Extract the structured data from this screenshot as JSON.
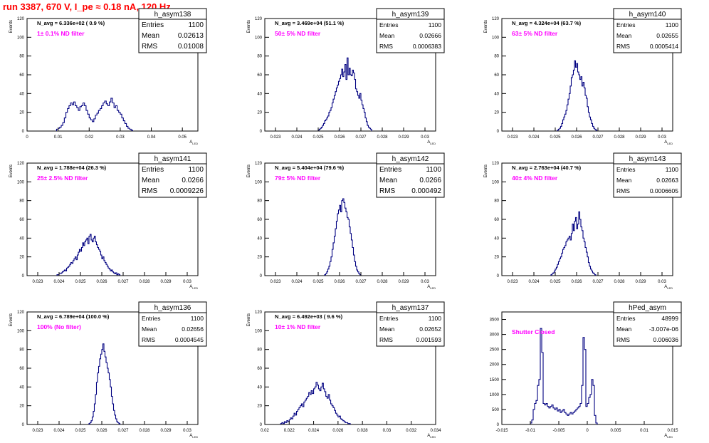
{
  "page": {
    "title": "run 3387,   670 V, I_pe ≈ 0.18 nA, 120 Hz",
    "colors": {
      "title": "#ff0000",
      "filter_label": "#ff00ff",
      "histogram": "#000080",
      "axes": "#000000"
    }
  },
  "chart_data": [
    {
      "type": "bar",
      "name": "h_asym138",
      "navg": "N_avg = 6.336e+02 ( 0.9 %)",
      "filter": "1± 0.1% ND filter",
      "stats": {
        "entries_label": "Entries",
        "entries": "1100",
        "mean_label": "Mean",
        "mean": "0.02613",
        "rms_label": "RMS",
        "rms": "0.01008"
      },
      "xlabel": "A_LED",
      "ylabel": "Events",
      "xlim": [
        0.0,
        0.055
      ],
      "ylim": [
        0,
        120
      ],
      "xticks": [
        0,
        0.01,
        0.02,
        0.03,
        0.04,
        0.05
      ],
      "xticklabels": [
        "0",
        "0.01",
        "0.02",
        "0.03",
        "0.04",
        "0.05"
      ],
      "yticks": [
        0,
        20,
        40,
        60,
        80,
        100,
        120
      ],
      "yticklabels": [
        "0",
        "20",
        "40",
        "60",
        "80",
        "100",
        "120"
      ],
      "bin_start": 0.0095,
      "bin_width": 0.0005,
      "values": [
        2,
        3,
        4,
        6,
        9,
        14,
        20,
        24,
        27,
        30,
        28,
        31,
        27,
        25,
        22,
        26,
        27,
        30,
        27,
        22,
        18,
        14,
        12,
        10,
        13,
        17,
        19,
        22,
        24,
        27,
        30,
        32,
        29,
        27,
        31,
        35,
        30,
        25,
        27,
        22,
        20,
        18,
        14,
        11,
        8,
        5,
        3,
        2,
        1
      ]
    },
    {
      "type": "bar",
      "name": "h_asym139",
      "navg": "N_avg = 3.469e+04 (51.1 %)",
      "filter": "50± 5% ND filter",
      "stats": {
        "entries_label": "Entries",
        "entries": "1100",
        "mean_label": "Mean",
        "mean": "0.02666",
        "rms_label": "RMS",
        "rms": "0.0006383"
      },
      "xlabel": "A_LED",
      "ylabel": "Events",
      "xlim": [
        0.0225,
        0.0305
      ],
      "ylim": [
        0,
        120
      ],
      "xticks": [
        0.023,
        0.024,
        0.025,
        0.026,
        0.027,
        0.028,
        0.029,
        0.03
      ],
      "xticklabels": [
        "0.023",
        "0.024",
        "0.025",
        "0.026",
        "0.027",
        "0.028",
        "0.029",
        "0.03"
      ],
      "yticks": [
        0,
        20,
        40,
        60,
        80,
        100,
        120
      ],
      "yticklabels": [
        "0",
        "20",
        "40",
        "60",
        "80",
        "100",
        "120"
      ],
      "bin_start": 0.025,
      "bin_width": 5e-05,
      "values": [
        1,
        2,
        3,
        4,
        6,
        8,
        11,
        12,
        14,
        16,
        20,
        22,
        25,
        30,
        34,
        38,
        42,
        46,
        49,
        53,
        56,
        60,
        66,
        58,
        63,
        71,
        55,
        78,
        60,
        67,
        60,
        59,
        65,
        62,
        55,
        45,
        42,
        38,
        35,
        40,
        33,
        28,
        24,
        20,
        14,
        10,
        6,
        4,
        3,
        2
      ]
    },
    {
      "type": "bar",
      "name": "h_asym140",
      "navg": "N_avg = 4.324e+04 (63.7 %)",
      "filter": "63± 5% ND filter",
      "stats": {
        "entries_label": "Entries",
        "entries": "1100",
        "mean_label": "Mean",
        "mean": "0.02655",
        "rms_label": "RMS",
        "rms": "0.0005414"
      },
      "xlabel": "A_LED",
      "ylabel": "Events",
      "xlim": [
        0.0225,
        0.0305
      ],
      "ylim": [
        0,
        120
      ],
      "xticks": [
        0.023,
        0.024,
        0.025,
        0.026,
        0.027,
        0.028,
        0.029,
        0.03
      ],
      "xticklabels": [
        "0.023",
        "0.024",
        "0.025",
        "0.026",
        "0.027",
        "0.028",
        "0.029",
        "0.03"
      ],
      "yticks": [
        0,
        20,
        40,
        60,
        80,
        100,
        120
      ],
      "yticklabels": [
        "0",
        "20",
        "40",
        "60",
        "80",
        "100",
        "120"
      ],
      "bin_start": 0.0251,
      "bin_width": 5e-05,
      "values": [
        1,
        2,
        3,
        5,
        8,
        12,
        15,
        18,
        22,
        28,
        34,
        40,
        48,
        57,
        60,
        65,
        75,
        68,
        72,
        63,
        60,
        55,
        58,
        48,
        52,
        46,
        38,
        35,
        26,
        20,
        15,
        12,
        8,
        5,
        3,
        2,
        1
      ]
    },
    {
      "type": "bar",
      "name": "h_asym141",
      "navg": "N_avg = 1.788e+04 (26.3 %)",
      "filter": "25± 2.5% ND filter",
      "stats": {
        "entries_label": "Entries",
        "entries": "1100",
        "mean_label": "Mean",
        "mean": "0.0266",
        "rms_label": "RMS",
        "rms": "0.0009226"
      },
      "xlabel": "A_LED",
      "ylabel": "Events",
      "xlim": [
        0.0225,
        0.0305
      ],
      "ylim": [
        0,
        120
      ],
      "xticks": [
        0.023,
        0.024,
        0.025,
        0.026,
        0.027,
        0.028,
        0.029,
        0.03
      ],
      "xticklabels": [
        "0.023",
        "0.024",
        "0.025",
        "0.026",
        "0.027",
        "0.028",
        "0.029",
        "0.03"
      ],
      "yticks": [
        0,
        20,
        40,
        60,
        80,
        100,
        120
      ],
      "yticklabels": [
        "0",
        "20",
        "40",
        "60",
        "80",
        "100",
        "120"
      ],
      "bin_start": 0.0239,
      "bin_width": 5e-05,
      "values": [
        1,
        1,
        2,
        2,
        3,
        4,
        5,
        6,
        5,
        8,
        9,
        10,
        12,
        14,
        13,
        16,
        18,
        20,
        17,
        22,
        25,
        28,
        26,
        30,
        35,
        32,
        36,
        38,
        40,
        34,
        42,
        44,
        38,
        36,
        40,
        42,
        36,
        33,
        30,
        28,
        26,
        22,
        18,
        20,
        16,
        14,
        12,
        10,
        8,
        7,
        5,
        6,
        4,
        3,
        2,
        3,
        1,
        2,
        1
      ]
    },
    {
      "type": "bar",
      "name": "h_asym142",
      "navg": "N_avg = 5.404e+04 (79.6 %)",
      "filter": "79± 5% ND filter",
      "stats": {
        "entries_label": "Entries",
        "entries": "1100",
        "mean_label": "Mean",
        "mean": "0.0266",
        "rms_label": "RMS",
        "rms": "0.000492"
      },
      "xlabel": "A_LED",
      "ylabel": "Events",
      "xlim": [
        0.0225,
        0.0305
      ],
      "ylim": [
        0,
        120
      ],
      "xticks": [
        0.023,
        0.024,
        0.025,
        0.026,
        0.027,
        0.028,
        0.029,
        0.03
      ],
      "xticklabels": [
        "0.023",
        "0.024",
        "0.025",
        "0.026",
        "0.027",
        "0.028",
        "0.029",
        "0.03"
      ],
      "yticks": [
        0,
        20,
        40,
        60,
        80,
        100,
        120
      ],
      "yticklabels": [
        "0",
        "20",
        "40",
        "60",
        "80",
        "100",
        "120"
      ],
      "bin_start": 0.0253,
      "bin_width": 5e-05,
      "values": [
        1,
        2,
        4,
        7,
        10,
        15,
        20,
        28,
        35,
        42,
        50,
        58,
        66,
        70,
        75,
        68,
        80,
        82,
        78,
        72,
        68,
        62,
        60,
        52,
        45,
        38,
        30,
        22,
        15,
        10,
        6,
        4,
        2,
        1
      ]
    },
    {
      "type": "bar",
      "name": "h_asym143",
      "navg": "N_avg = 2.763e+04 (40.7 %)",
      "filter": "40± 4% ND filter",
      "stats": {
        "entries_label": "Entries",
        "entries": "1100",
        "mean_label": "Mean",
        "mean": "0.02663",
        "rms_label": "RMS",
        "rms": "0.0006605"
      },
      "xlabel": "A_LED",
      "ylabel": "Events",
      "xlim": [
        0.0225,
        0.0305
      ],
      "ylim": [
        0,
        120
      ],
      "xticks": [
        0.023,
        0.024,
        0.025,
        0.026,
        0.027,
        0.028,
        0.029,
        0.03
      ],
      "xticklabels": [
        "0.023",
        "0.024",
        "0.025",
        "0.026",
        "0.027",
        "0.028",
        "0.029",
        "0.03"
      ],
      "yticks": [
        0,
        20,
        40,
        60,
        80,
        100,
        120
      ],
      "yticklabels": [
        "0",
        "20",
        "40",
        "60",
        "80",
        "100",
        "120"
      ],
      "bin_start": 0.0248,
      "bin_width": 5e-05,
      "values": [
        1,
        2,
        3,
        5,
        7,
        9,
        12,
        15,
        18,
        20,
        24,
        28,
        30,
        32,
        36,
        38,
        40,
        42,
        38,
        45,
        55,
        48,
        58,
        62,
        50,
        55,
        68,
        60,
        52,
        48,
        40,
        36,
        30,
        25,
        20,
        14,
        10,
        7,
        5,
        3,
        2,
        1
      ]
    },
    {
      "type": "bar",
      "name": "h_asym136",
      "navg": "N_avg = 6.789e+04 (100.0 %)",
      "filter": "100% (No filter)",
      "stats": {
        "entries_label": "Entries",
        "entries": "1100",
        "mean_label": "Mean",
        "mean": "0.02656",
        "rms_label": "RMS",
        "rms": "0.0004545"
      },
      "xlabel": "A_LED",
      "ylabel": "Events",
      "xlim": [
        0.0225,
        0.0305
      ],
      "ylim": [
        0,
        120
      ],
      "xticks": [
        0.023,
        0.024,
        0.025,
        0.026,
        0.027,
        0.028,
        0.029,
        0.03
      ],
      "xticklabels": [
        "0.023",
        "0.024",
        "0.025",
        "0.026",
        "0.027",
        "0.028",
        "0.029",
        "0.03"
      ],
      "yticks": [
        0,
        20,
        40,
        60,
        80,
        100,
        120
      ],
      "yticklabels": [
        "0",
        "20",
        "40",
        "60",
        "80",
        "100",
        "120"
      ],
      "bin_start": 0.0254,
      "bin_width": 5e-05,
      "values": [
        1,
        2,
        4,
        8,
        14,
        22,
        32,
        45,
        55,
        62,
        70,
        75,
        80,
        86,
        78,
        72,
        66,
        60,
        55,
        48,
        40,
        30,
        22,
        15,
        10,
        6,
        3,
        2,
        1
      ]
    },
    {
      "type": "bar",
      "name": "h_asym137",
      "navg": "N_avg = 6.492e+03 ( 9.6 %)",
      "filter": "10± 1% ND filter",
      "stats": {
        "entries_label": "Entries",
        "entries": "1100",
        "mean_label": "Mean",
        "mean": "0.02652",
        "rms_label": "RMS",
        "rms": "0.001593"
      },
      "xlabel": "A_LED",
      "ylabel": "Events",
      "xlim": [
        0.02,
        0.034
      ],
      "ylim": [
        0,
        120
      ],
      "xticks": [
        0.02,
        0.022,
        0.024,
        0.026,
        0.028,
        0.03,
        0.032,
        0.034
      ],
      "xticklabels": [
        "0.02",
        "0.022",
        "0.024",
        "0.026",
        "0.028",
        "0.03",
        "0.032",
        "0.034"
      ],
      "yticks": [
        0,
        20,
        40,
        60,
        80,
        100,
        120
      ],
      "yticklabels": [
        "0",
        "20",
        "40",
        "60",
        "80",
        "100",
        "120"
      ],
      "bin_start": 0.0213,
      "bin_width": 0.0001,
      "values": [
        1,
        2,
        1,
        3,
        2,
        4,
        3,
        5,
        7,
        6,
        9,
        12,
        10,
        14,
        16,
        18,
        20,
        22,
        19,
        24,
        26,
        28,
        30,
        34,
        32,
        36,
        33,
        38,
        40,
        45,
        42,
        38,
        36,
        40,
        44,
        38,
        35,
        30,
        28,
        32,
        26,
        22,
        20,
        18,
        15,
        12,
        10,
        8,
        9,
        6,
        5,
        4,
        3,
        2,
        2,
        1,
        1
      ]
    },
    {
      "type": "bar",
      "name": "hPed_asym",
      "navg": "",
      "filter": "Shutter Closed",
      "stats": {
        "entries_label": "Entries",
        "entries": "48999",
        "mean_label": "Mean",
        "mean": "-3.007e-06",
        "rms_label": "RMS",
        "rms": "0.006036"
      },
      "xlabel": "A_LED",
      "ylabel": "",
      "xlim": [
        -0.015,
        0.015
      ],
      "ylim": [
        0,
        3750
      ],
      "xticks": [
        -0.015,
        -0.01,
        -0.005,
        0,
        0.005,
        0.01,
        0.015
      ],
      "xticklabels": [
        "-0.015",
        "-0.01",
        "-0.005",
        "0",
        "0.005",
        "0.01",
        "0.015"
      ],
      "yticks": [
        0,
        500,
        1000,
        1500,
        2000,
        2500,
        3000,
        3500
      ],
      "yticklabels": [
        "0",
        "500",
        "1000",
        "1500",
        "2000",
        "2500",
        "3000",
        "3500"
      ],
      "bin_start": -0.01,
      "bin_width": 0.00025,
      "values": [
        50,
        150,
        500,
        700,
        800,
        1300,
        1500,
        3200,
        2400,
        700,
        650,
        700,
        600,
        550,
        600,
        650,
        550,
        500,
        550,
        450,
        500,
        400,
        450,
        500,
        400,
        350,
        300,
        350,
        400,
        350,
        400,
        450,
        500,
        550,
        600,
        700,
        1300,
        2900,
        2500,
        600,
        700,
        900,
        1000,
        1500,
        1300,
        300,
        50
      ]
    }
  ]
}
